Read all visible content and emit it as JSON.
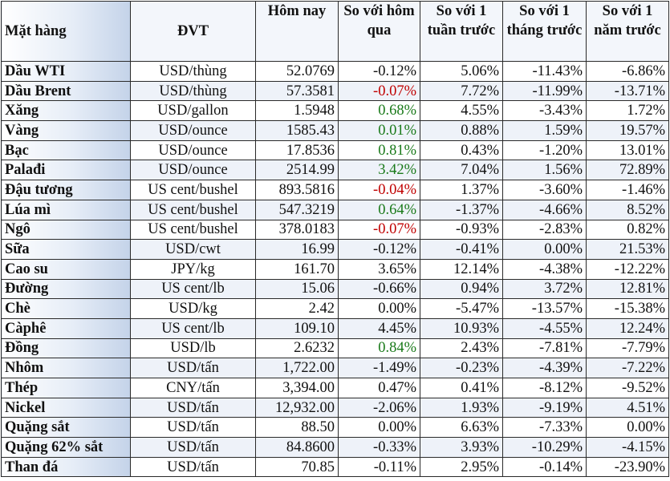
{
  "colors": {
    "red": "#c00000",
    "green": "#1a7a1a"
  },
  "headers": [
    "Mặt hàng",
    "ĐVT",
    "Hôm nay",
    "So với hôm qua",
    "So với 1 tuần trước",
    "So với 1 tháng trước",
    "So với 1 năm trước"
  ],
  "rows": [
    {
      "item": "Dầu WTI",
      "unit": "USD/thùng",
      "today": "52.0769",
      "day": "-0.12%",
      "week": "5.06%",
      "month": "-11.43%",
      "year": "-6.86%",
      "day_color": null
    },
    {
      "item": "Dầu Brent",
      "unit": "USD/thùng",
      "today": "57.3581",
      "day": "-0.07%",
      "week": "7.72%",
      "month": "-11.99%",
      "year": "-13.71%",
      "day_color": "red"
    },
    {
      "item": "Xăng",
      "unit": "USD/gallon",
      "today": "1.5948",
      "day": "0.68%",
      "week": "4.55%",
      "month": "-3.43%",
      "year": "1.72%",
      "day_color": "green"
    },
    {
      "item": "Vàng",
      "unit": "USD/ounce",
      "today": "1585.43",
      "day": "0.01%",
      "week": "0.88%",
      "month": "1.59%",
      "year": "19.57%",
      "day_color": "green"
    },
    {
      "item": "Bạc",
      "unit": "USD/ounce",
      "today": "17.8536",
      "day": "0.81%",
      "week": "0.43%",
      "month": "-1.20%",
      "year": "13.01%",
      "day_color": "green"
    },
    {
      "item": "Palađi",
      "unit": "USD/ounce",
      "today": "2514.99",
      "day": "3.42%",
      "week": "7.04%",
      "month": "1.56%",
      "year": "72.89%",
      "day_color": "green"
    },
    {
      "item": "Đậu tương",
      "unit": "US cent/bushel",
      "today": "893.5816",
      "day": "-0.04%",
      "week": "1.37%",
      "month": "-3.60%",
      "year": "-1.46%",
      "day_color": "red"
    },
    {
      "item": "Lúa mì",
      "unit": "US cent/bushel",
      "today": "547.3219",
      "day": "0.64%",
      "week": "-1.37%",
      "month": "-4.66%",
      "year": "8.52%",
      "day_color": "green"
    },
    {
      "item": "Ngô",
      "unit": "US cent/bushel",
      "today": "378.0183",
      "day": "-0.07%",
      "week": "-0.93%",
      "month": "-2.83%",
      "year": "0.82%",
      "day_color": "red"
    },
    {
      "item": "Sữa",
      "unit": "USD/cwt",
      "today": "16.99",
      "day": "-0.12%",
      "week": "-0.41%",
      "month": "0.00%",
      "year": "21.53%",
      "day_color": null
    },
    {
      "item": "Cao su",
      "unit": "JPY/kg",
      "today": "161.70",
      "day": "3.65%",
      "week": "12.14%",
      "month": "-4.38%",
      "year": "-12.22%",
      "day_color": null
    },
    {
      "item": "Đường",
      "unit": "US cent/lb",
      "today": "15.06",
      "day": "-0.66%",
      "week": "0.94%",
      "month": "3.72%",
      "year": "12.81%",
      "day_color": null
    },
    {
      "item": "Chè",
      "unit": "USD/kg",
      "today": "2.42",
      "day": "0.00%",
      "week": "-5.47%",
      "month": "-13.57%",
      "year": "-15.38%",
      "day_color": null
    },
    {
      "item": "Càphê",
      "unit": "US cent/lb",
      "today": "109.10",
      "day": "4.45%",
      "week": "10.93%",
      "month": "-4.55%",
      "year": "12.24%",
      "day_color": null
    },
    {
      "item": "Đồng",
      "unit": "USD/lb",
      "today": "2.6232",
      "day": "0.84%",
      "week": "2.43%",
      "month": "-7.81%",
      "year": "-7.79%",
      "day_color": "green"
    },
    {
      "item": "Nhôm",
      "unit": "USD/tấn",
      "today": "1,722.00",
      "day": "-1.49%",
      "week": "-0.23%",
      "month": "-4.39%",
      "year": "-7.22%",
      "day_color": null
    },
    {
      "item": "Thép",
      "unit": "CNY/tấn",
      "today": "3,394.00",
      "day": "0.47%",
      "week": "0.41%",
      "month": "-8.12%",
      "year": "-9.52%",
      "day_color": null
    },
    {
      "item": "Nickel",
      "unit": "USD/tấn",
      "today": "12,932.00",
      "day": "-2.06%",
      "week": "1.93%",
      "month": "-9.19%",
      "year": "4.51%",
      "day_color": null
    },
    {
      "item": "Quặng sắt",
      "unit": "USD/tấn",
      "today": "88.50",
      "day": "0.00%",
      "week": "6.63%",
      "month": "-7.33%",
      "year": "0.00%",
      "day_color": null
    },
    {
      "item": "Quặng 62% sắt",
      "unit": "USD/tấn",
      "today": "84.8600",
      "day": "-0.33%",
      "week": "3.93%",
      "month": "-10.29%",
      "year": "-4.15%",
      "day_color": null
    },
    {
      "item": "Than đá",
      "unit": "USD/tấn",
      "today": "70.85",
      "day": "-0.11%",
      "week": "2.95%",
      "month": "-0.14%",
      "year": "-23.90%",
      "day_color": null
    }
  ]
}
